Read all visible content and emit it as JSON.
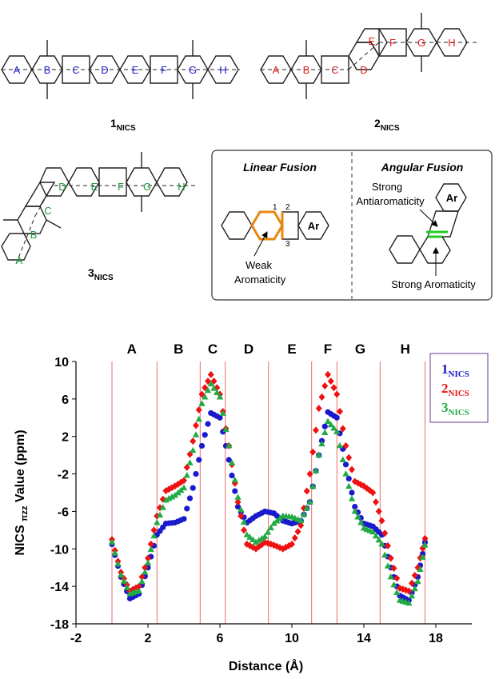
{
  "colors": {
    "series1": "#1a1acc",
    "series2": "#ee1111",
    "series3": "#22aa44",
    "ring_blue": "#1f1fd0",
    "ring_red": "#e02020",
    "ring_green": "#1e9a3a",
    "bond_orange": "#e8870e",
    "bond_green": "#22cc22",
    "vline": "#ee4444"
  },
  "structures": {
    "compound1": {
      "rings": [
        "A",
        "B",
        "C",
        "D",
        "E",
        "F",
        "G",
        "H"
      ],
      "label_main": "1",
      "label_sub": "NICS"
    },
    "compound2": {
      "rings": [
        "A",
        "B",
        "C",
        "D",
        "E",
        "F",
        "G",
        "H"
      ],
      "label_main": "2",
      "label_sub": "NICS"
    },
    "compound3": {
      "rings": [
        "A",
        "B",
        "C",
        "D",
        "E",
        "F",
        "G",
        "H"
      ],
      "label_main": "3",
      "label_sub": "NICS"
    }
  },
  "legend_box": {
    "linear_title": "Linear Fusion",
    "angular_title": "Angular Fusion",
    "ar_label": "Ar",
    "ar_label_2": "Ar",
    "num1": "1",
    "num2": "2",
    "num3": "3",
    "weak_line1": "Weak",
    "weak_line2": "Aromaticity",
    "strong_anti_line1": "Strong",
    "strong_anti_line2": "Antiaromaticity",
    "strong_arom": "Strong Aromaticity"
  },
  "chart_data": {
    "type": "scatter",
    "xlabel": "Distance (Å)",
    "ylabel_main": "NICS",
    "ylabel_sub": "πzz",
    "ylabel_tail": " Value (ppm)",
    "xlim": [
      -2,
      20
    ],
    "ylim": [
      -18,
      10
    ],
    "xticks": [
      -2,
      2,
      6,
      10,
      14,
      18
    ],
    "yticks": [
      -18,
      -14,
      -10,
      -6,
      -2,
      2,
      6,
      10
    ],
    "region_labels": [
      {
        "text": "A",
        "x": 1.1
      },
      {
        "text": "B",
        "x": 3.7
      },
      {
        "text": "C",
        "x": 5.6
      },
      {
        "text": "D",
        "x": 7.6
      },
      {
        "text": "E",
        "x": 10.0
      },
      {
        "text": "F",
        "x": 12.0
      },
      {
        "text": "G",
        "x": 13.8
      },
      {
        "text": "H",
        "x": 16.3
      }
    ],
    "vlines": [
      0,
      2.5,
      4.9,
      6.3,
      8.7,
      11.1,
      12.5,
      14.9,
      17.4
    ],
    "legend": [
      {
        "main": "1",
        "sub": "NICS"
      },
      {
        "main": "2",
        "sub": "NICS"
      },
      {
        "main": "3",
        "sub": "NICS"
      }
    ],
    "grid": false,
    "legend_position": "top-right",
    "series": [
      {
        "main": "1",
        "sub": "NICS",
        "marker": "circle",
        "points": [
          [
            0,
            -9.5
          ],
          [
            0.5,
            -13
          ],
          [
            1,
            -15.3
          ],
          [
            1.5,
            -14.8
          ],
          [
            2,
            -12
          ],
          [
            2.5,
            -8.5
          ],
          [
            3,
            -7.3
          ],
          [
            3.5,
            -7.2
          ],
          [
            4,
            -6.8
          ],
          [
            4.5,
            -3.5
          ],
          [
            5,
            1
          ],
          [
            5.5,
            4.5
          ],
          [
            6,
            4
          ],
          [
            6.5,
            -0.5
          ],
          [
            7,
            -5.5
          ],
          [
            7.5,
            -7.2
          ],
          [
            8,
            -6.5
          ],
          [
            8.5,
            -6
          ],
          [
            9,
            -6.2
          ],
          [
            9.5,
            -7
          ],
          [
            10,
            -7.3
          ],
          [
            10.5,
            -7
          ],
          [
            11,
            -5
          ],
          [
            11.5,
            0
          ],
          [
            12,
            4.6
          ],
          [
            12.5,
            4
          ],
          [
            13,
            -1
          ],
          [
            13.5,
            -5.5
          ],
          [
            14,
            -7.3
          ],
          [
            14.5,
            -7.6
          ],
          [
            15,
            -8.5
          ],
          [
            15.5,
            -12
          ],
          [
            16,
            -15
          ],
          [
            16.5,
            -15.5
          ],
          [
            17,
            -13
          ],
          [
            17.4,
            -9.3
          ]
        ]
      },
      {
        "main": "2",
        "sub": "NICS",
        "marker": "diamond",
        "points": [
          [
            0,
            -9
          ],
          [
            0.5,
            -12.5
          ],
          [
            1,
            -14.5
          ],
          [
            1.5,
            -14
          ],
          [
            2,
            -11
          ],
          [
            2.5,
            -6.5
          ],
          [
            3,
            -3.8
          ],
          [
            3.5,
            -3.3
          ],
          [
            4,
            -2.7
          ],
          [
            4.5,
            1.5
          ],
          [
            5,
            6.5
          ],
          [
            5.5,
            8.6
          ],
          [
            6,
            6.5
          ],
          [
            6.5,
            1
          ],
          [
            7,
            -5
          ],
          [
            7.5,
            -9.5
          ],
          [
            8,
            -10
          ],
          [
            8.5,
            -9.3
          ],
          [
            9,
            -9.6
          ],
          [
            9.5,
            -10
          ],
          [
            10,
            -9.5
          ],
          [
            10.5,
            -7.5
          ],
          [
            11,
            -2
          ],
          [
            11.5,
            5
          ],
          [
            12,
            8.6
          ],
          [
            12.5,
            6.5
          ],
          [
            13,
            1
          ],
          [
            13.5,
            -2.8
          ],
          [
            14,
            -3.3
          ],
          [
            14.5,
            -4
          ],
          [
            15,
            -7
          ],
          [
            15.5,
            -11
          ],
          [
            16,
            -14.2
          ],
          [
            16.5,
            -14.5
          ],
          [
            17,
            -12
          ],
          [
            17.4,
            -8.9
          ]
        ]
      },
      {
        "main": "3",
        "sub": "NICS",
        "marker": "triangle",
        "points": [
          [
            0,
            -9.3
          ],
          [
            0.5,
            -12.8
          ],
          [
            1,
            -14.8
          ],
          [
            1.5,
            -14.5
          ],
          [
            2,
            -11.5
          ],
          [
            2.5,
            -7.2
          ],
          [
            3,
            -4.8
          ],
          [
            3.5,
            -4.3
          ],
          [
            4,
            -3.5
          ],
          [
            4.5,
            0.5
          ],
          [
            5,
            5.5
          ],
          [
            5.5,
            7.6
          ],
          [
            6,
            6.2
          ],
          [
            6.5,
            1
          ],
          [
            7,
            -4.5
          ],
          [
            7.5,
            -8.5
          ],
          [
            8,
            -9.3
          ],
          [
            8.5,
            -8.7
          ],
          [
            9,
            -7.3
          ],
          [
            9.5,
            -6.5
          ],
          [
            10,
            -6.6
          ],
          [
            10.5,
            -7
          ],
          [
            11,
            -5
          ],
          [
            11.5,
            0
          ],
          [
            12,
            3.6
          ],
          [
            12.5,
            2.5
          ],
          [
            13,
            -2
          ],
          [
            13.5,
            -6
          ],
          [
            14,
            -7.8
          ],
          [
            14.5,
            -8.2
          ],
          [
            15,
            -9.5
          ],
          [
            15.5,
            -13
          ],
          [
            16,
            -15.5
          ],
          [
            16.5,
            -15.8
          ],
          [
            17,
            -13.5
          ],
          [
            17.4,
            -9.6
          ]
        ]
      }
    ]
  }
}
